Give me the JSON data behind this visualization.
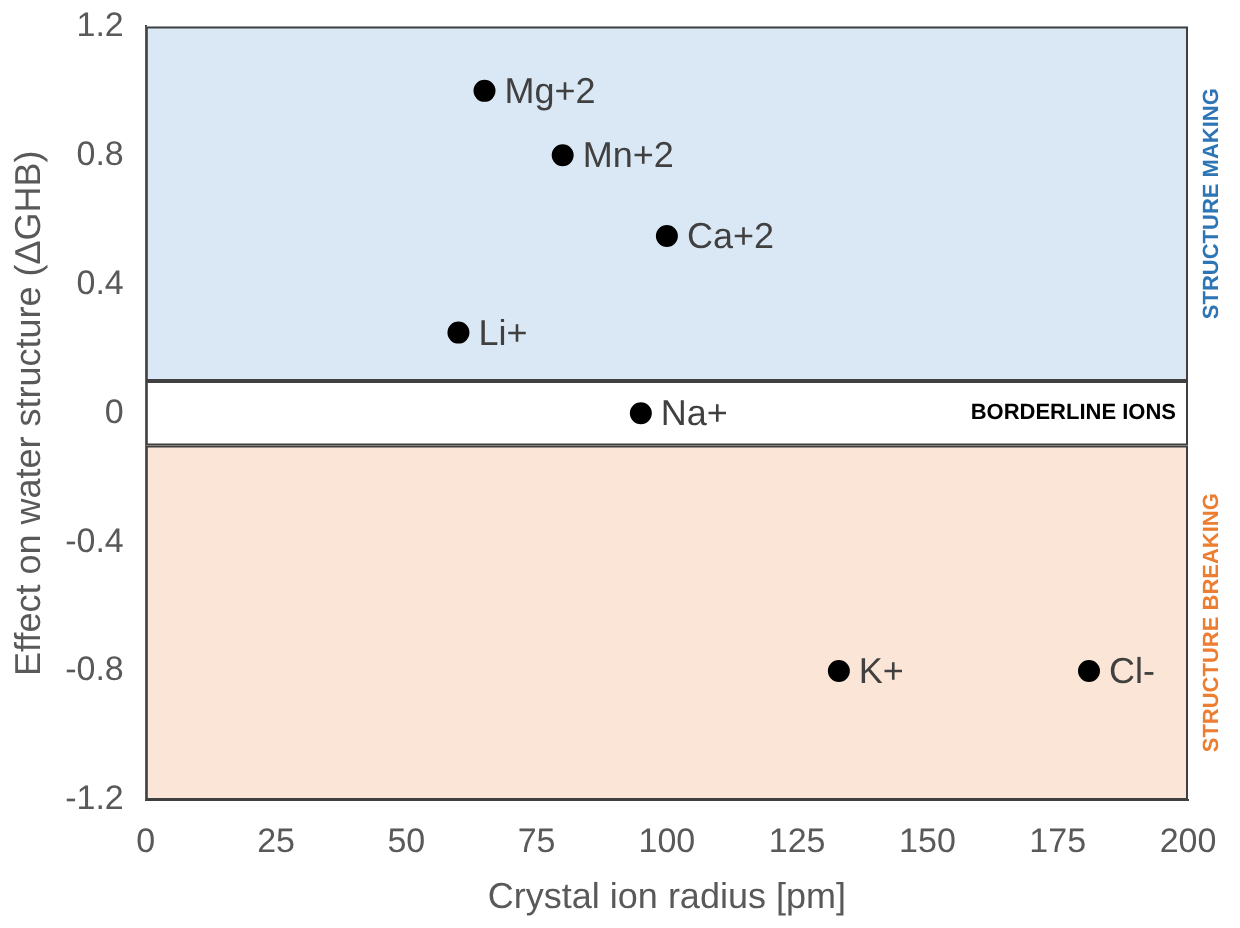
{
  "chart_data": {
    "type": "scatter",
    "xlabel": "Crystal ion radius [pm]",
    "ylabel": "Effect on water structure (ΔGHB)",
    "x": [
      65,
      80,
      100,
      60,
      95,
      133,
      181
    ],
    "series": [
      {
        "color": "#000000",
        "values": [
          1.0,
          0.8,
          0.55,
          0.25,
          0,
          -0.8,
          -0.8
        ]
      }
    ],
    "xlim": [
      0,
      200
    ],
    "xticks": [
      0,
      25,
      50,
      75,
      100,
      125,
      150,
      175,
      200
    ],
    "ylim": [
      -1.2,
      1.2
    ],
    "yticks": [
      -1.2,
      -0.8,
      -0.4,
      0,
      0.4,
      0.8,
      1.2
    ],
    "grid": false,
    "legend": false,
    "marker": "circle",
    "bands": [
      {
        "axis": "y",
        "from": 0.1,
        "to": 1.2,
        "label": "STRUCTURE MAKING",
        "color": "#dae8f5"
      },
      {
        "axis": "y",
        "from": -0.1,
        "to": 0.1,
        "label": "BORDERLINE IONS",
        "color": "#ffffff"
      },
      {
        "axis": "y",
        "from": -1.2,
        "to": -0.1,
        "label": "STRUCTURE BREAKING",
        "color": "#fbe5d6"
      }
    ],
    "annotations": [
      {
        "text": "Mg+2",
        "x": 65,
        "y": 1.0
      },
      {
        "text": "Mn+2",
        "x": 80,
        "y": 0.8
      },
      {
        "text": "Ca+2",
        "x": 100,
        "y": 0.55
      },
      {
        "text": "Li+",
        "x": 60,
        "y": 0.25
      },
      {
        "text": "Na+",
        "x": 95,
        "y": 0
      },
      {
        "text": "K+",
        "x": 133,
        "y": -0.8
      },
      {
        "text": "Cl-",
        "x": 181,
        "y": -0.8
      }
    ]
  }
}
